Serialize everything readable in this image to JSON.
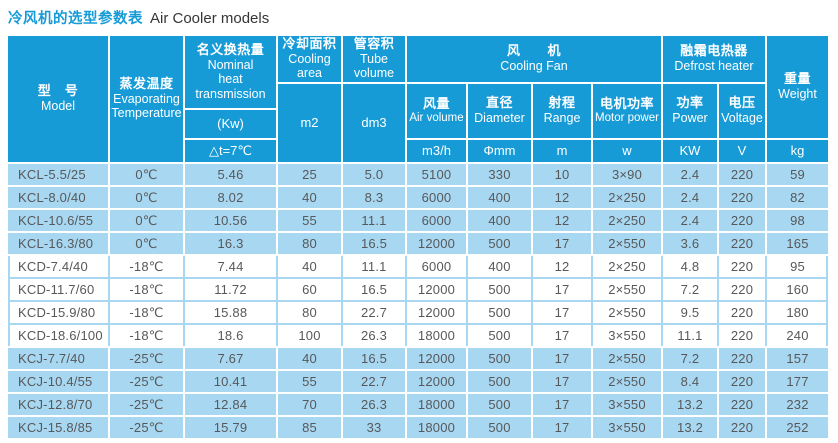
{
  "title": {
    "zh": "冷风机的选型参数表",
    "en": "Air Cooler models"
  },
  "colors": {
    "header_bg": "#179BD7",
    "row_light_blue": "#A8D8F1",
    "row_white": "#FFFFFF",
    "gridline_on_blue": "#FFFFFF",
    "gridline_on_white": "#A8D8F1",
    "body_text": "#57585A",
    "title_accent": "#179BD7",
    "header_text": "#FFFFFF"
  },
  "header": {
    "model": {
      "zh": "型　号",
      "en": "Model"
    },
    "evaporating": {
      "zh": "蒸发温度",
      "en": "Evaporating Temperature"
    },
    "nominal": {
      "zh": "名义换热量",
      "en": "Nominal heat transmission",
      "unit_kw": "(Kw)",
      "unit_dt": "△t=7℃"
    },
    "cooling_area": {
      "zh": "冷却面积",
      "en": "Cooling area",
      "unit": "m2"
    },
    "tube_volume": {
      "zh": "管容积",
      "en": "Tube volume",
      "unit": "dm3"
    },
    "fan": {
      "zh": "风　　机",
      "en": "Cooling Fan",
      "cols": [
        {
          "zh": "风量",
          "en": "Air volume",
          "unit": "m3/h"
        },
        {
          "zh": "直径",
          "en": "Diameter",
          "unit": "Φmm"
        },
        {
          "zh": "射程",
          "en": "Range",
          "unit": "m"
        },
        {
          "zh": "电机功率",
          "en": "Motor power",
          "unit": "w"
        }
      ]
    },
    "defrost": {
      "zh": "融霜电热器",
      "en": "Defrost heater",
      "cols": [
        {
          "zh": "功率",
          "en": "Power",
          "unit": "KW"
        },
        {
          "zh": "电压",
          "en": "Voltage",
          "unit": "V"
        }
      ]
    },
    "weight": {
      "zh": "重量",
      "en": "Weight",
      "unit": "kg"
    }
  },
  "column_keys": [
    "model",
    "evap-temp",
    "nominal-kw",
    "cooling-area",
    "tube-volume",
    "air-volume",
    "diameter",
    "range",
    "motor-power",
    "heater-power",
    "voltage",
    "weight"
  ],
  "sections": [
    {
      "name": "kcl",
      "variant": "blue",
      "row_indexes": [
        0,
        1,
        2,
        3
      ]
    },
    {
      "name": "kcd",
      "variant": "white",
      "row_indexes": [
        4,
        5,
        6,
        7
      ]
    },
    {
      "name": "kcj",
      "variant": "blue",
      "row_indexes": [
        8,
        9,
        10,
        11
      ]
    }
  ],
  "rows": [
    {
      "group": "KCL",
      "cells": [
        "KCL-5.5/25",
        "0℃",
        "5.46",
        "25",
        "5.0",
        "5100",
        "330",
        "10",
        "3×90",
        "2.4",
        "220",
        "59"
      ]
    },
    {
      "group": "KCL",
      "cells": [
        "KCL-8.0/40",
        "0℃",
        "8.02",
        "40",
        "8.3",
        "6000",
        "400",
        "12",
        "2×250",
        "2.4",
        "220",
        "82"
      ]
    },
    {
      "group": "KCL",
      "cells": [
        "KCL-10.6/55",
        "0℃",
        "10.56",
        "55",
        "11.1",
        "6000",
        "400",
        "12",
        "2×250",
        "2.4",
        "220",
        "98"
      ]
    },
    {
      "group": "KCL",
      "cells": [
        "KCL-16.3/80",
        "0℃",
        "16.3",
        "80",
        "16.5",
        "12000",
        "500",
        "17",
        "2×550",
        "3.6",
        "220",
        "165"
      ]
    },
    {
      "group": "KCD",
      "cells": [
        "KCD-7.4/40",
        "-18℃",
        "7.44",
        "40",
        "11.1",
        "6000",
        "400",
        "12",
        "2×250",
        "4.8",
        "220",
        "95"
      ]
    },
    {
      "group": "KCD",
      "cells": [
        "KCD-11.7/60",
        "-18℃",
        "11.72",
        "60",
        "16.5",
        "12000",
        "500",
        "17",
        "2×550",
        "7.2",
        "220",
        "160"
      ]
    },
    {
      "group": "KCD",
      "cells": [
        "KCD-15.9/80",
        "-18℃",
        "15.88",
        "80",
        "22.7",
        "12000",
        "500",
        "17",
        "2×550",
        "9.5",
        "220",
        "180"
      ]
    },
    {
      "group": "KCD",
      "cells": [
        "KCD-18.6/100",
        "-18℃",
        "18.6",
        "100",
        "26.3",
        "18000",
        "500",
        "17",
        "3×550",
        "11.1",
        "220",
        "240"
      ]
    },
    {
      "group": "KCJ",
      "cells": [
        "KCJ-7.7/40",
        "-25℃",
        "7.67",
        "40",
        "16.5",
        "12000",
        "500",
        "17",
        "2×550",
        "7.2",
        "220",
        "157"
      ]
    },
    {
      "group": "KCJ",
      "cells": [
        "KCJ-10.4/55",
        "-25℃",
        "10.41",
        "55",
        "22.7",
        "12000",
        "500",
        "17",
        "2×550",
        "8.4",
        "220",
        "177"
      ]
    },
    {
      "group": "KCJ",
      "cells": [
        "KCJ-12.8/70",
        "-25℃",
        "12.84",
        "70",
        "26.3",
        "18000",
        "500",
        "17",
        "3×550",
        "13.2",
        "220",
        "232"
      ]
    },
    {
      "group": "KCJ",
      "cells": [
        "KCJ-15.8/85",
        "-25℃",
        "15.79",
        "85",
        "33",
        "18000",
        "500",
        "17",
        "3×550",
        "13.2",
        "220",
        "252"
      ]
    }
  ]
}
